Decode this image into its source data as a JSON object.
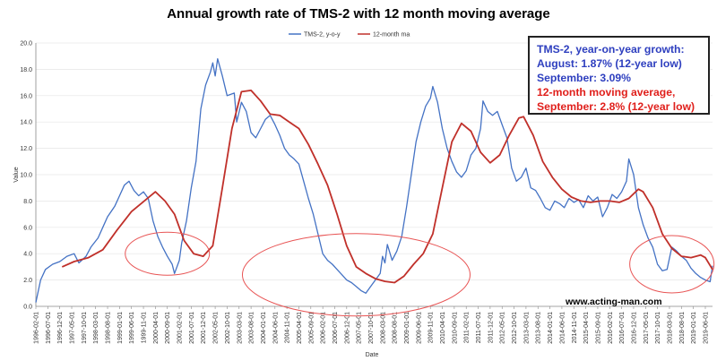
{
  "chart_data": {
    "type": "line",
    "title": "Annual growth rate of TMS-2 with 12 month moving average",
    "xlabel": "Date",
    "ylabel": "Value",
    "ylim": [
      0,
      20
    ],
    "yticks": [
      "0.0",
      "2.0",
      "4.0",
      "6.0",
      "8.0",
      "10.0",
      "12.0",
      "14.0",
      "16.0",
      "18.0",
      "20.0"
    ],
    "xlim": [
      "1996-02",
      "2019-09"
    ],
    "xticks": [
      "1996-02-01",
      "1996-07-01",
      "1996-12-01",
      "1997-05-01",
      "1997-10-01",
      "1998-03-01",
      "1998-08-01",
      "1999-01-01",
      "1999-06-01",
      "1999-11-01",
      "2000-04-01",
      "2000-09-01",
      "2001-02-01",
      "2001-07-01",
      "2001-12-01",
      "2002-05-01",
      "2002-10-01",
      "2003-03-01",
      "2003-08-01",
      "2004-01-01",
      "2004-06-01",
      "2004-11-01",
      "2005-04-01",
      "2005-09-01",
      "2006-02-01",
      "2006-07-01",
      "2006-12-01",
      "2007-05-01",
      "2007-10-01",
      "2008-03-01",
      "2008-08-01",
      "2009-01-01",
      "2009-06-01",
      "2009-11-01",
      "2010-04-01",
      "2010-09-01",
      "2011-02-01",
      "2011-07-01",
      "2011-12-01",
      "2012-05-01",
      "2012-10-01",
      "2013-03-01",
      "2013-08-01",
      "2014-01-01",
      "2014-06-01",
      "2014-11-01",
      "2015-04-01",
      "2015-09-01",
      "2016-02-01",
      "2016-07-01",
      "2016-12-01",
      "2017-05-01",
      "2017-10-01",
      "2018-03-01",
      "2018-08-01",
      "2019-01-01",
      "2019-06-01"
    ],
    "legend": [
      "TMS-2, y-o-y",
      "12-month ma"
    ],
    "legend_position": "top-center",
    "series": [
      {
        "name": "TMS-2, y-o-y",
        "color": "#4472c4",
        "points": [
          [
            "1996-02",
            0.3
          ],
          [
            "1996-04",
            2.0
          ],
          [
            "1996-06",
            2.8
          ],
          [
            "1996-09",
            3.2
          ],
          [
            "1996-12",
            3.4
          ],
          [
            "1997-03",
            3.8
          ],
          [
            "1997-06",
            4.0
          ],
          [
            "1997-08",
            3.3
          ],
          [
            "1997-11",
            3.8
          ],
          [
            "1998-01",
            4.5
          ],
          [
            "1998-04",
            5.2
          ],
          [
            "1998-06",
            6.0
          ],
          [
            "1998-08",
            6.8
          ],
          [
            "1998-11",
            7.6
          ],
          [
            "1999-01",
            8.4
          ],
          [
            "1999-03",
            9.2
          ],
          [
            "1999-05",
            9.5
          ],
          [
            "1999-07",
            8.8
          ],
          [
            "1999-09",
            8.4
          ],
          [
            "1999-11",
            8.7
          ],
          [
            "2000-01",
            8.2
          ],
          [
            "2000-03",
            6.5
          ],
          [
            "2000-05",
            5.3
          ],
          [
            "2000-07",
            4.5
          ],
          [
            "2000-09",
            3.8
          ],
          [
            "2000-11",
            3.2
          ],
          [
            "2000-12",
            2.5
          ],
          [
            "2001-02",
            3.5
          ],
          [
            "2001-03",
            4.8
          ],
          [
            "2001-05",
            6.5
          ],
          [
            "2001-07",
            9.0
          ],
          [
            "2001-09",
            11.0
          ],
          [
            "2001-11",
            15.0
          ],
          [
            "2002-01",
            16.8
          ],
          [
            "2002-03",
            17.8
          ],
          [
            "2002-04",
            18.5
          ],
          [
            "2002-05",
            17.5
          ],
          [
            "2002-06",
            18.8
          ],
          [
            "2002-08",
            17.5
          ],
          [
            "2002-10",
            16.0
          ],
          [
            "2003-01",
            16.2
          ],
          [
            "2003-02",
            14.0
          ],
          [
            "2003-04",
            15.5
          ],
          [
            "2003-06",
            14.8
          ],
          [
            "2003-08",
            13.2
          ],
          [
            "2003-10",
            12.8
          ],
          [
            "2003-12",
            13.5
          ],
          [
            "2004-02",
            14.2
          ],
          [
            "2004-04",
            14.5
          ],
          [
            "2004-06",
            13.8
          ],
          [
            "2004-08",
            13.0
          ],
          [
            "2004-10",
            12.0
          ],
          [
            "2004-12",
            11.5
          ],
          [
            "2005-02",
            11.2
          ],
          [
            "2005-04",
            10.8
          ],
          [
            "2005-06",
            9.5
          ],
          [
            "2005-08",
            8.2
          ],
          [
            "2005-10",
            7.0
          ],
          [
            "2005-12",
            5.5
          ],
          [
            "2006-02",
            4.0
          ],
          [
            "2006-04",
            3.5
          ],
          [
            "2006-06",
            3.2
          ],
          [
            "2006-08",
            2.8
          ],
          [
            "2006-10",
            2.4
          ],
          [
            "2006-12",
            2.0
          ],
          [
            "2007-02",
            1.8
          ],
          [
            "2007-04",
            1.5
          ],
          [
            "2007-06",
            1.2
          ],
          [
            "2007-08",
            1.0
          ],
          [
            "2007-10",
            1.5
          ],
          [
            "2007-12",
            2.0
          ],
          [
            "2008-02",
            2.5
          ],
          [
            "2008-03",
            3.8
          ],
          [
            "2008-04",
            3.3
          ],
          [
            "2008-05",
            4.7
          ],
          [
            "2008-07",
            3.5
          ],
          [
            "2008-09",
            4.2
          ],
          [
            "2008-11",
            5.3
          ],
          [
            "2009-01",
            7.5
          ],
          [
            "2009-03",
            10.0
          ],
          [
            "2009-05",
            12.5
          ],
          [
            "2009-07",
            14.0
          ],
          [
            "2009-09",
            15.2
          ],
          [
            "2009-11",
            15.8
          ],
          [
            "2009-12",
            16.7
          ],
          [
            "2010-02",
            15.5
          ],
          [
            "2010-04",
            13.5
          ],
          [
            "2010-06",
            12.0
          ],
          [
            "2010-08",
            11.0
          ],
          [
            "2010-10",
            10.2
          ],
          [
            "2010-12",
            9.8
          ],
          [
            "2011-02",
            10.3
          ],
          [
            "2011-04",
            11.5
          ],
          [
            "2011-06",
            12.0
          ],
          [
            "2011-08",
            13.5
          ],
          [
            "2011-09",
            15.6
          ],
          [
            "2011-11",
            14.8
          ],
          [
            "2012-01",
            14.5
          ],
          [
            "2012-03",
            14.8
          ],
          [
            "2012-05",
            13.8
          ],
          [
            "2012-07",
            12.8
          ],
          [
            "2012-09",
            10.5
          ],
          [
            "2012-11",
            9.5
          ],
          [
            "2013-01",
            9.8
          ],
          [
            "2013-03",
            10.5
          ],
          [
            "2013-05",
            9.0
          ],
          [
            "2013-07",
            8.8
          ],
          [
            "2013-09",
            8.2
          ],
          [
            "2013-11",
            7.5
          ],
          [
            "2014-01",
            7.3
          ],
          [
            "2014-03",
            8.0
          ],
          [
            "2014-05",
            7.8
          ],
          [
            "2014-07",
            7.5
          ],
          [
            "2014-09",
            8.2
          ],
          [
            "2014-11",
            7.9
          ],
          [
            "2015-01",
            8.1
          ],
          [
            "2015-03",
            7.5
          ],
          [
            "2015-05",
            8.4
          ],
          [
            "2015-07",
            8.0
          ],
          [
            "2015-09",
            8.3
          ],
          [
            "2015-11",
            6.8
          ],
          [
            "2016-01",
            7.5
          ],
          [
            "2016-03",
            8.5
          ],
          [
            "2016-05",
            8.2
          ],
          [
            "2016-07",
            8.7
          ],
          [
            "2016-09",
            9.5
          ],
          [
            "2016-10",
            11.2
          ],
          [
            "2016-12",
            10.0
          ],
          [
            "2017-02",
            7.5
          ],
          [
            "2017-04",
            6.2
          ],
          [
            "2017-06",
            5.2
          ],
          [
            "2017-08",
            4.5
          ],
          [
            "2017-10",
            3.2
          ],
          [
            "2017-12",
            2.7
          ],
          [
            "2018-02",
            2.8
          ],
          [
            "2018-04",
            4.5
          ],
          [
            "2018-06",
            4.2
          ],
          [
            "2018-08",
            3.8
          ],
          [
            "2018-10",
            3.5
          ],
          [
            "2018-12",
            2.9
          ],
          [
            "2019-02",
            2.5
          ],
          [
            "2019-04",
            2.2
          ],
          [
            "2019-06",
            2.0
          ],
          [
            "2019-08",
            1.87
          ],
          [
            "2019-09",
            3.09
          ]
        ]
      },
      {
        "name": "12-month ma",
        "color": "#c0302a",
        "points": [
          [
            "1997-01",
            3.0
          ],
          [
            "1997-06",
            3.4
          ],
          [
            "1997-12",
            3.7
          ],
          [
            "1998-06",
            4.3
          ],
          [
            "1998-12",
            5.8
          ],
          [
            "1999-06",
            7.2
          ],
          [
            "1999-12",
            8.1
          ],
          [
            "2000-04",
            8.7
          ],
          [
            "2000-08",
            8.0
          ],
          [
            "2000-12",
            7.0
          ],
          [
            "2001-04",
            5.0
          ],
          [
            "2001-08",
            4.0
          ],
          [
            "2001-12",
            3.8
          ],
          [
            "2002-04",
            4.6
          ],
          [
            "2002-08",
            9.0
          ],
          [
            "2002-12",
            13.5
          ],
          [
            "2003-04",
            16.3
          ],
          [
            "2003-08",
            16.4
          ],
          [
            "2003-12",
            15.6
          ],
          [
            "2004-04",
            14.6
          ],
          [
            "2004-08",
            14.5
          ],
          [
            "2004-12",
            14.0
          ],
          [
            "2005-04",
            13.5
          ],
          [
            "2005-08",
            12.3
          ],
          [
            "2005-12",
            10.8
          ],
          [
            "2006-04",
            9.2
          ],
          [
            "2006-08",
            7.0
          ],
          [
            "2006-12",
            4.6
          ],
          [
            "2007-04",
            3.0
          ],
          [
            "2007-08",
            2.5
          ],
          [
            "2007-12",
            2.1
          ],
          [
            "2008-04",
            1.9
          ],
          [
            "2008-08",
            1.8
          ],
          [
            "2008-12",
            2.3
          ],
          [
            "2009-04",
            3.2
          ],
          [
            "2009-08",
            4.0
          ],
          [
            "2009-12",
            5.5
          ],
          [
            "2010-04",
            9.0
          ],
          [
            "2010-08",
            12.5
          ],
          [
            "2010-12",
            13.9
          ],
          [
            "2011-04",
            13.3
          ],
          [
            "2011-08",
            11.7
          ],
          [
            "2011-12",
            10.9
          ],
          [
            "2012-04",
            11.5
          ],
          [
            "2012-08",
            13.0
          ],
          [
            "2012-12",
            14.3
          ],
          [
            "2013-02",
            14.4
          ],
          [
            "2013-06",
            13.0
          ],
          [
            "2013-10",
            11.0
          ],
          [
            "2014-02",
            9.8
          ],
          [
            "2014-06",
            8.9
          ],
          [
            "2014-10",
            8.3
          ],
          [
            "2015-02",
            8.0
          ],
          [
            "2015-06",
            7.9
          ],
          [
            "2015-10",
            8.0
          ],
          [
            "2016-02",
            8.0
          ],
          [
            "2016-06",
            7.9
          ],
          [
            "2016-10",
            8.2
          ],
          [
            "2017-02",
            8.9
          ],
          [
            "2017-04",
            8.7
          ],
          [
            "2017-08",
            7.5
          ],
          [
            "2017-12",
            5.5
          ],
          [
            "2018-04",
            4.4
          ],
          [
            "2018-08",
            3.8
          ],
          [
            "2018-12",
            3.7
          ],
          [
            "2019-04",
            3.9
          ],
          [
            "2019-06",
            3.7
          ],
          [
            "2019-09",
            2.8
          ]
        ]
      }
    ],
    "annotations": {
      "box_lines": [
        {
          "text": "TMS-2, year-on-year growth:",
          "color": "#2e3fbf"
        },
        {
          "text": "August: 1.87% (12-year low)",
          "color": "#2e3fbf"
        },
        {
          "text": "September: 3.09%",
          "color": "#2e3fbf"
        },
        {
          "text": "12-month moving average,",
          "color": "#e0201c"
        },
        {
          "text": "September: 2.8% (12-year low)",
          "color": "#e0201c"
        }
      ],
      "watermark": "www.acting-man.com",
      "highlight_ellipses": [
        {
          "center": [
            "2000-09",
            4.0
          ]
        },
        {
          "center": [
            "2007-04",
            2.4
          ]
        },
        {
          "center": [
            "2018-04",
            3.2
          ]
        }
      ]
    }
  }
}
